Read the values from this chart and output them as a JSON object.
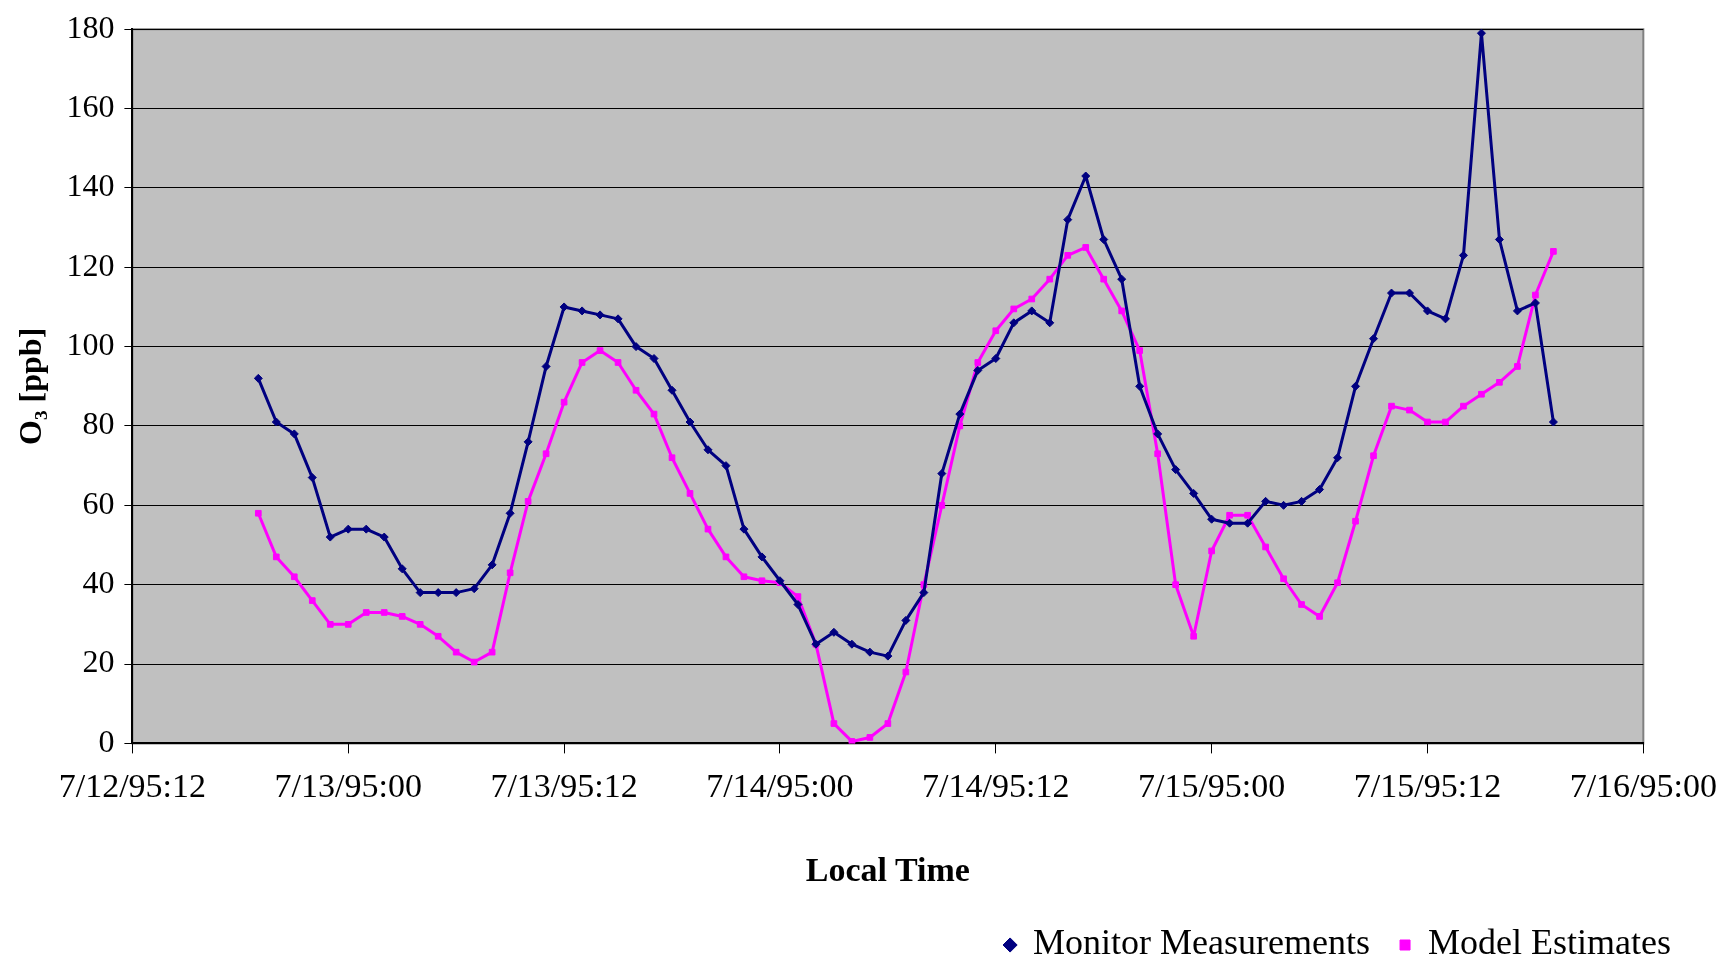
{
  "chart_data": {
    "type": "line",
    "xlabel": "Local Time",
    "ylabel": "O₃ [ppb]",
    "x": [
      "1995-07-12T19:00",
      "1995-07-12T20:00",
      "1995-07-12T21:00",
      "1995-07-12T22:00",
      "1995-07-12T23:00",
      "1995-07-13T00:00",
      "1995-07-13T01:00",
      "1995-07-13T02:00",
      "1995-07-13T03:00",
      "1995-07-13T04:00",
      "1995-07-13T05:00",
      "1995-07-13T06:00",
      "1995-07-13T07:00",
      "1995-07-13T08:00",
      "1995-07-13T09:00",
      "1995-07-13T10:00",
      "1995-07-13T11:00",
      "1995-07-13T12:00",
      "1995-07-13T13:00",
      "1995-07-13T14:00",
      "1995-07-13T15:00",
      "1995-07-13T16:00",
      "1995-07-13T17:00",
      "1995-07-13T18:00",
      "1995-07-13T19:00",
      "1995-07-13T20:00",
      "1995-07-13T21:00",
      "1995-07-13T22:00",
      "1995-07-13T23:00",
      "1995-07-14T00:00",
      "1995-07-14T01:00",
      "1995-07-14T02:00",
      "1995-07-14T03:00",
      "1995-07-14T04:00",
      "1995-07-14T05:00",
      "1995-07-14T06:00",
      "1995-07-14T07:00",
      "1995-07-14T08:00",
      "1995-07-14T09:00",
      "1995-07-14T10:00",
      "1995-07-14T11:00",
      "1995-07-14T12:00",
      "1995-07-14T13:00",
      "1995-07-14T14:00",
      "1995-07-14T15:00",
      "1995-07-14T16:00",
      "1995-07-14T17:00",
      "1995-07-14T18:00",
      "1995-07-14T19:00",
      "1995-07-14T20:00",
      "1995-07-14T21:00",
      "1995-07-14T22:00",
      "1995-07-14T23:00",
      "1995-07-15T00:00",
      "1995-07-15T01:00",
      "1995-07-15T02:00",
      "1995-07-15T03:00",
      "1995-07-15T04:00",
      "1995-07-15T05:00",
      "1995-07-15T06:00",
      "1995-07-15T07:00",
      "1995-07-15T08:00",
      "1995-07-15T09:00",
      "1995-07-15T10:00",
      "1995-07-15T11:00",
      "1995-07-15T12:00",
      "1995-07-15T13:00",
      "1995-07-15T14:00",
      "1995-07-15T15:00",
      "1995-07-15T16:00",
      "1995-07-15T17:00",
      "1995-07-15T18:00",
      "1995-07-15T19:00"
    ],
    "series": [
      {
        "name": "Monitor Measurements",
        "color": "#000080",
        "marker": "diamond",
        "values": [
          92,
          81,
          78,
          67,
          52,
          54,
          54,
          52,
          44,
          38,
          38,
          38,
          39,
          45,
          58,
          76,
          95,
          110,
          109,
          108,
          107,
          100,
          97,
          89,
          81,
          74,
          70,
          54,
          47,
          41,
          35,
          25,
          28,
          25,
          23,
          22,
          31,
          38,
          68,
          83,
          94,
          97,
          106,
          109,
          106,
          132,
          143,
          127,
          117,
          90,
          78,
          69,
          63,
          56.5,
          55.5,
          55.5,
          61,
          60,
          61,
          64,
          72,
          90,
          102,
          113.5,
          113.5,
          109,
          107,
          123,
          179,
          127,
          109,
          111,
          81
        ]
      },
      {
        "name": "Model Estimates",
        "color": "#ff00ff",
        "marker": "square",
        "values": [
          58,
          47,
          42,
          36,
          30,
          30,
          33,
          33,
          32,
          30,
          27,
          23,
          20.5,
          23,
          43,
          61,
          73,
          86,
          96,
          99,
          96,
          89,
          83,
          72,
          63,
          54,
          47,
          42,
          41,
          40.5,
          37,
          25,
          5,
          0.5,
          1.5,
          5,
          18,
          40,
          60,
          80,
          96,
          104,
          109.5,
          112,
          117,
          123,
          125,
          117,
          109,
          99,
          73,
          40,
          27,
          48.5,
          57.5,
          57.5,
          49.5,
          41.5,
          35,
          32,
          40.5,
          56,
          72.5,
          85,
          84,
          81,
          81,
          85,
          88,
          91,
          95,
          113,
          124
        ]
      }
    ],
    "xlim": [
      "1995-07-12T12:00",
      "1995-07-16T00:00"
    ],
    "xticks": [
      {
        "value": "1995-07-12T12:00",
        "label": "7/12/95:12"
      },
      {
        "value": "1995-07-13T00:00",
        "label": "7/13/95:00"
      },
      {
        "value": "1995-07-13T12:00",
        "label": "7/13/95:12"
      },
      {
        "value": "1995-07-14T00:00",
        "label": "7/14/95:00"
      },
      {
        "value": "1995-07-14T12:00",
        "label": "7/14/95:12"
      },
      {
        "value": "1995-07-15T00:00",
        "label": "7/15/95:00"
      },
      {
        "value": "1995-07-15T12:00",
        "label": "7/15/95:12"
      },
      {
        "value": "1995-07-16T00:00",
        "label": "7/16/95:00"
      }
    ],
    "ylim": [
      0,
      180
    ],
    "yticks": [
      0,
      20,
      40,
      60,
      80,
      100,
      120,
      140,
      160,
      180
    ],
    "grid": "y",
    "legend": "bottom right",
    "line_style": "solid"
  }
}
